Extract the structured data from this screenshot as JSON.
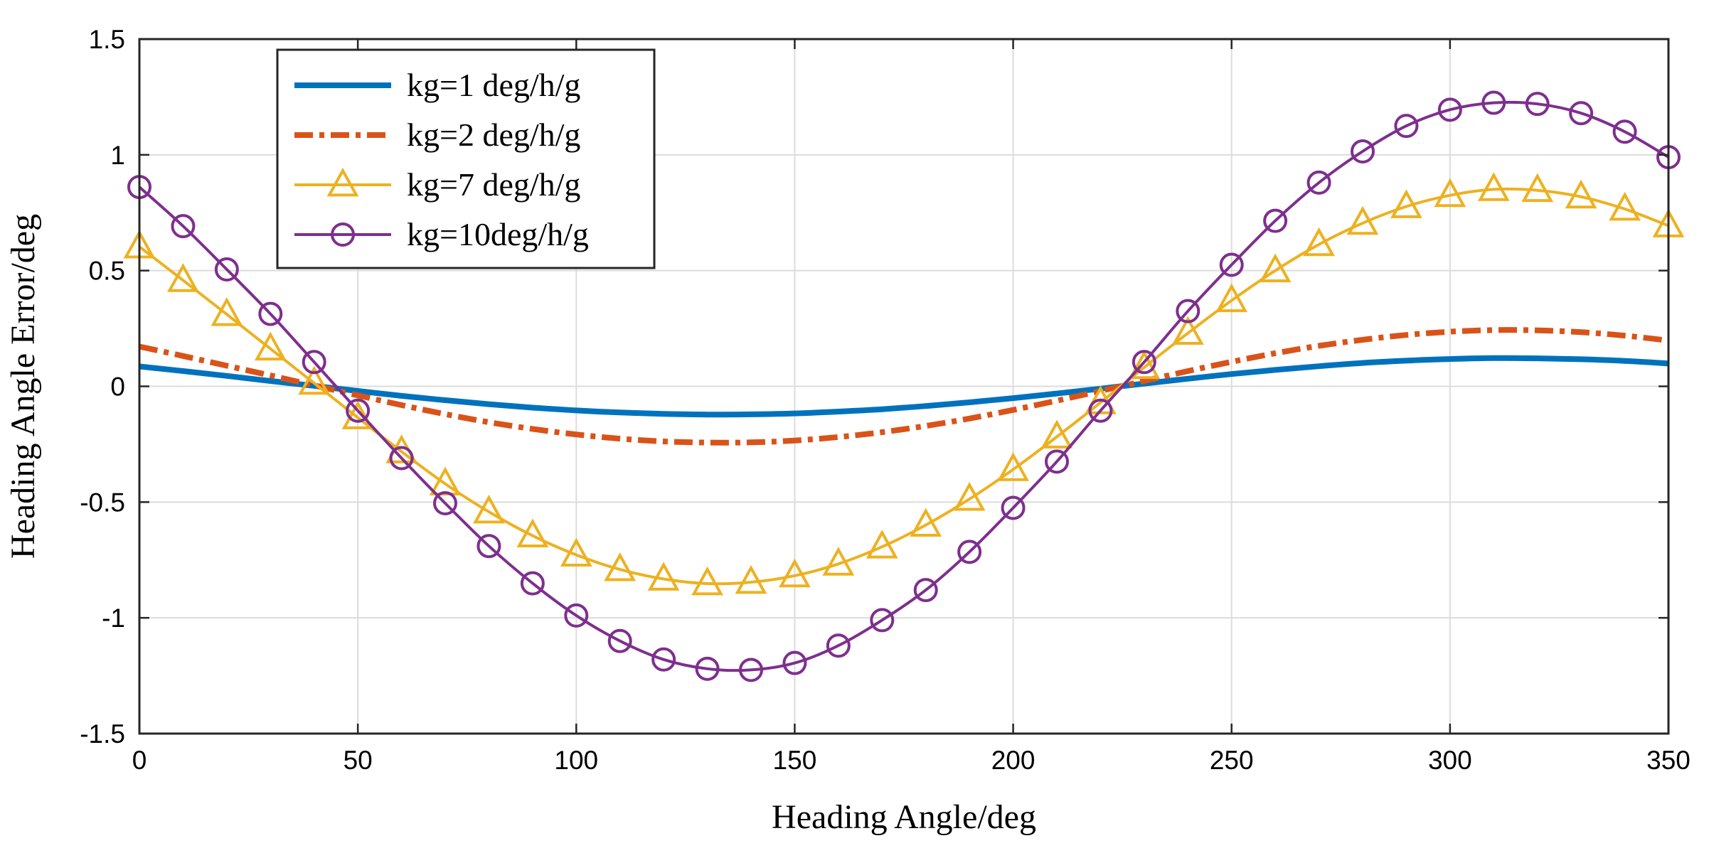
{
  "chart_data": {
    "type": "line",
    "title": "",
    "xlabel": "Heading Angle/deg",
    "ylabel": "Heading Angle Error/deg",
    "xlim": [
      0,
      350
    ],
    "ylim": [
      -1.5,
      1.5
    ],
    "grid": true,
    "legend_position": "top-left",
    "x_ticks": [
      0,
      50,
      100,
      150,
      200,
      250,
      300,
      350
    ],
    "x_tick_labels": [
      "0",
      "50",
      "100",
      "150",
      "200",
      "250",
      "300",
      "350"
    ],
    "y_ticks": [
      -1.5,
      -1,
      -0.5,
      0,
      0.5,
      1,
      1.5
    ],
    "y_tick_labels": [
      "-1.5",
      "-1",
      "-0.5",
      "0",
      "0.5",
      "1",
      "1.5"
    ],
    "x": [
      0,
      10,
      20,
      30,
      40,
      50,
      60,
      70,
      80,
      90,
      100,
      110,
      120,
      130,
      140,
      150,
      160,
      170,
      180,
      190,
      200,
      210,
      220,
      230,
      240,
      250,
      260,
      270,
      280,
      290,
      300,
      310,
      320,
      330,
      340,
      350
    ],
    "series": [
      {
        "name": "kg=1 deg/h/g",
        "color": "#0072BD",
        "line_style": "solid",
        "marker": "none",
        "values": [
          0.086,
          0.066,
          0.045,
          0.023,
          0.002,
          -0.02,
          -0.041,
          -0.06,
          -0.077,
          -0.092,
          -0.104,
          -0.113,
          -0.119,
          -0.122,
          -0.121,
          -0.117,
          -0.109,
          -0.099,
          -0.085,
          -0.069,
          -0.051,
          -0.031,
          -0.01,
          0.012,
          0.033,
          0.053,
          0.071,
          0.087,
          0.101,
          0.111,
          0.118,
          0.122,
          0.121,
          0.117,
          0.11,
          0.099
        ]
      },
      {
        "name": "kg=2 deg/h/g",
        "color": "#D95319",
        "line_style": "dashdot",
        "marker": "none",
        "values": [
          0.172,
          0.131,
          0.089,
          0.047,
          0.004,
          -0.039,
          -0.081,
          -0.12,
          -0.155,
          -0.184,
          -0.208,
          -0.226,
          -0.238,
          -0.243,
          -0.242,
          -0.234,
          -0.219,
          -0.198,
          -0.171,
          -0.139,
          -0.102,
          -0.062,
          -0.02,
          0.023,
          0.066,
          0.106,
          0.143,
          0.175,
          0.201,
          0.222,
          0.236,
          0.243,
          0.242,
          0.234,
          0.219,
          0.198
        ]
      },
      {
        "name": "kg=7 deg/h/g",
        "color": "#EDB120",
        "line_style": "solid",
        "marker": "triangle",
        "values": [
          0.603,
          0.458,
          0.311,
          0.162,
          0.014,
          -0.135,
          -0.282,
          -0.421,
          -0.542,
          -0.645,
          -0.728,
          -0.791,
          -0.832,
          -0.852,
          -0.846,
          -0.818,
          -0.767,
          -0.693,
          -0.599,
          -0.487,
          -0.359,
          -0.218,
          -0.07,
          0.082,
          0.23,
          0.371,
          0.5,
          0.613,
          0.705,
          0.777,
          0.825,
          0.851,
          0.847,
          0.819,
          0.766,
          0.694
        ]
      },
      {
        "name": "kg=10deg/h/g",
        "color": "#7E2F8E",
        "line_style": "solid",
        "marker": "circle",
        "values": [
          0.861,
          0.692,
          0.505,
          0.313,
          0.105,
          -0.105,
          -0.31,
          -0.505,
          -0.69,
          -0.851,
          -0.99,
          -1.1,
          -1.18,
          -1.22,
          -1.225,
          -1.195,
          -1.12,
          -1.01,
          -0.88,
          -0.715,
          -0.525,
          -0.325,
          -0.105,
          0.105,
          0.325,
          0.525,
          0.715,
          0.88,
          1.015,
          1.125,
          1.195,
          1.225,
          1.22,
          1.18,
          1.1,
          0.99
        ]
      }
    ]
  }
}
